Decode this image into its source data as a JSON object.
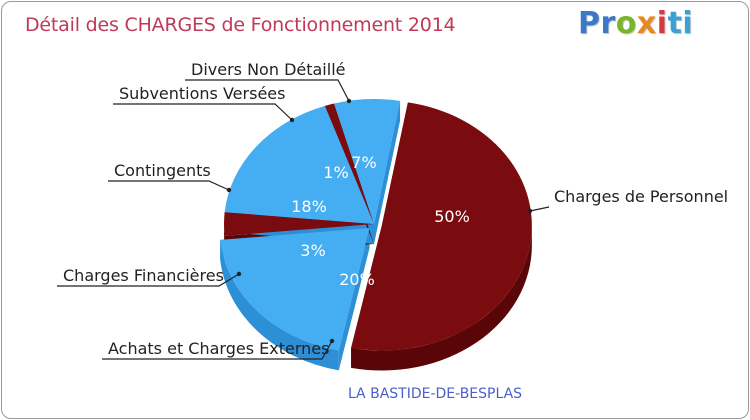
{
  "title": "Détail des CHARGES de Fonctionnement 2014",
  "logo": {
    "text": "Proxiti"
  },
  "footer": "LA BASTIDE-DE-BESPLAS",
  "colors": {
    "dark_red": "#7a0c0f",
    "dark_red_side": "#5a0608",
    "blue": "#45adf2",
    "blue_side": "#2d8fd6",
    "title": "#c0395a",
    "footer": "#4a5fc8"
  },
  "chart_data": {
    "type": "pie",
    "title": "Détail des CHARGES de Fonctionnement 2014",
    "exploded": true,
    "slices": [
      {
        "label": "Charges de Personnel",
        "value": 50,
        "display": "50%",
        "color": "#7a0c0f"
      },
      {
        "label": "Achats et Charges Externes",
        "value": 20,
        "display": "20%",
        "color": "#45adf2"
      },
      {
        "label": "Charges Financières",
        "value": 3,
        "display": "3%",
        "color": "#7a0c0f"
      },
      {
        "label": "Contingents",
        "value": 18,
        "display": "18%",
        "color": "#45adf2"
      },
      {
        "label": "Subventions Versées",
        "value": 1,
        "display": "1%",
        "color": "#7a0c0f"
      },
      {
        "label": "Divers Non Détaillé",
        "value": 7,
        "display": "7%",
        "color": "#45adf2"
      }
    ]
  }
}
